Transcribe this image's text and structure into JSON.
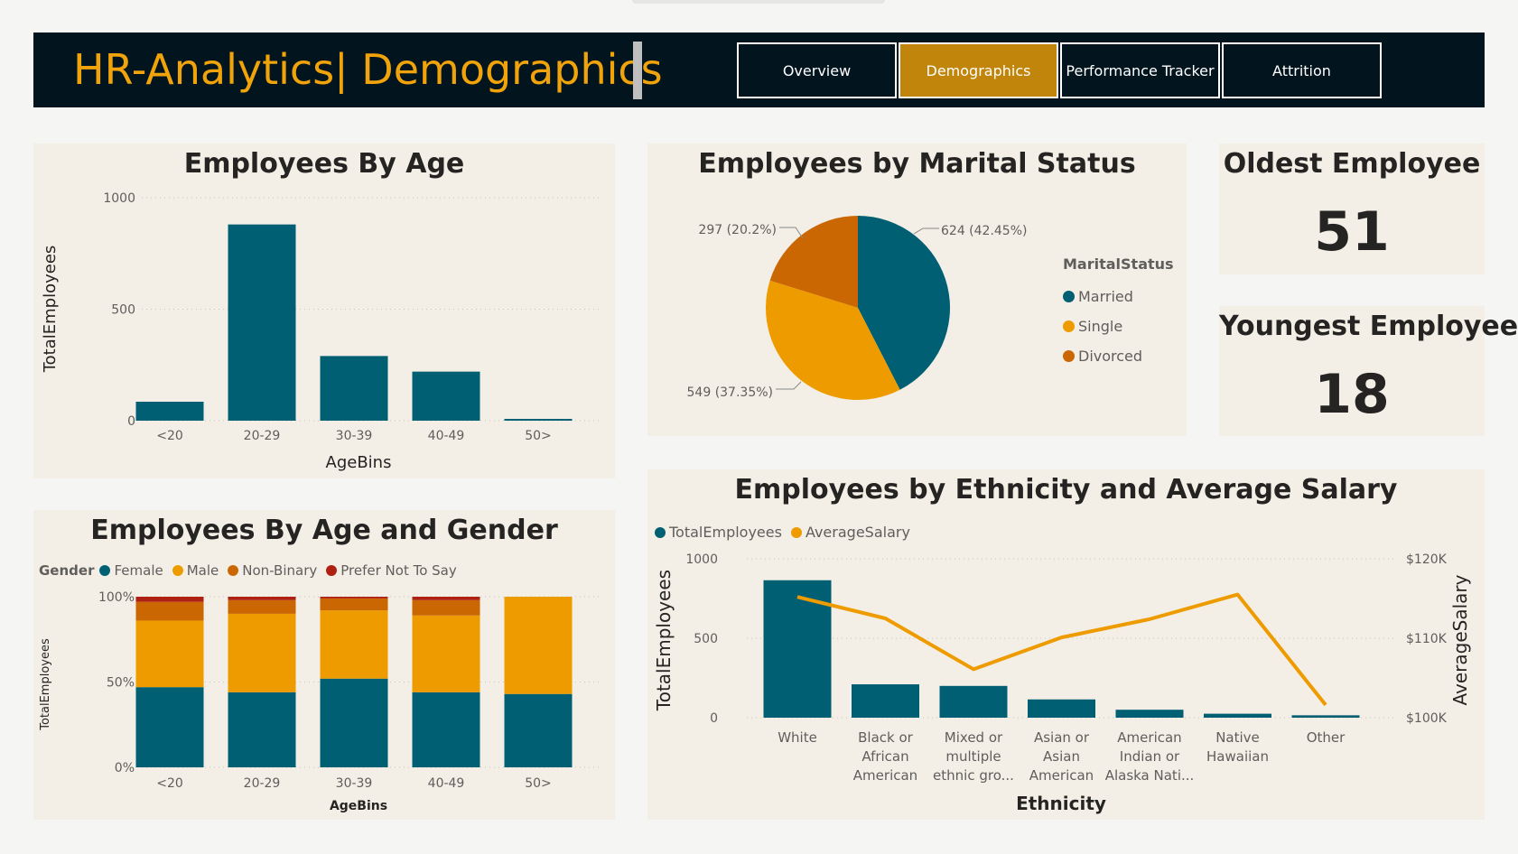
{
  "header": {
    "title": "HR-Analytics| Demographics",
    "nav": [
      {
        "label": "Overview",
        "active": false
      },
      {
        "label": "Demographics",
        "active": true
      },
      {
        "label": "Performance Tracker",
        "active": false
      },
      {
        "label": "Attrition",
        "active": false
      }
    ]
  },
  "colors": {
    "teal": "#005f73",
    "amber": "#ee9b00",
    "orange": "#ca6702",
    "red": "#ae2012",
    "header_bg": "#02141d",
    "title_color": "#f0a30a",
    "active_nav": "#c0850a",
    "panel_bg": "#f3efe6"
  },
  "age_panel": {
    "title": "Employees By Age",
    "chart_data": {
      "type": "bar",
      "categories": [
        "<20",
        "20-29",
        "30-39",
        "40-49",
        "50>"
      ],
      "values": [
        85,
        880,
        290,
        220,
        8
      ],
      "ylim": [
        0,
        1000
      ],
      "yticks": [
        "0",
        "500",
        "1000"
      ],
      "xlabel": "AgeBins",
      "ylabel": "TotalEmployees",
      "grid": true
    }
  },
  "marital_panel": {
    "title": "Employees by Marital Status",
    "legend_title": "MaritalStatus",
    "chart_data": {
      "type": "pie",
      "categories": [
        "Married",
        "Single",
        "Divorced"
      ],
      "values": [
        624,
        549,
        297
      ],
      "labels": [
        "624 (42.45%)",
        "549 (37.35%)",
        "297 (20.2%)"
      ]
    }
  },
  "oldest": {
    "title": "Oldest Employee",
    "value": "51"
  },
  "youngest": {
    "title": "Youngest Employee",
    "value": "18"
  },
  "age_gender_panel": {
    "title": "Employees By Age and Gender",
    "legend_title": "Gender",
    "chart_data": {
      "type": "bar",
      "stacked": "100%",
      "categories": [
        "<20",
        "20-29",
        "30-39",
        "40-49",
        "50>"
      ],
      "series": [
        {
          "name": "Female",
          "values": [
            47,
            44,
            52,
            44,
            43
          ]
        },
        {
          "name": "Male",
          "values": [
            39,
            46,
            40,
            45,
            57
          ]
        },
        {
          "name": "Non-Binary",
          "values": [
            11,
            8,
            7,
            9,
            0
          ]
        },
        {
          "name": "Prefer Not To Say",
          "values": [
            3,
            2,
            1,
            2,
            0
          ]
        }
      ],
      "yticks": [
        "0%",
        "50%",
        "100%"
      ],
      "xlabel": "AgeBins",
      "ylabel": "TotalEmployees",
      "grid": true
    }
  },
  "ethnicity_panel": {
    "title": "Employees by Ethnicity and Average Salary",
    "chart_data": {
      "type": "bar",
      "categories": [
        [
          "White"
        ],
        [
          "Black or",
          "African",
          "American"
        ],
        [
          "Mixed or",
          "multiple",
          "ethnic gro..."
        ],
        [
          "Asian or",
          "Asian",
          "American"
        ],
        [
          "American",
          "Indian or",
          "Alaska Nati..."
        ],
        [
          "Native",
          "Hawaiian"
        ],
        [
          "Other"
        ]
      ],
      "series": [
        {
          "name": "TotalEmployees",
          "type": "bar",
          "axis": "left",
          "values": [
            865,
            210,
            200,
            115,
            50,
            25,
            15
          ]
        },
        {
          "name": "AverageSalary",
          "type": "line",
          "axis": "right",
          "values": [
            115200,
            112500,
            106100,
            110100,
            112400,
            115500,
            101600
          ]
        }
      ],
      "ylim_left": [
        0,
        1000
      ],
      "yticks_left": [
        "0",
        "500",
        "1000"
      ],
      "ylim_right": [
        100000,
        120000
      ],
      "yticks_right": [
        "$100K",
        "$110K",
        "$120K"
      ],
      "xlabel": "Ethnicity",
      "ylabel_left": "TotalEmployees",
      "ylabel_right": "AverageSalary",
      "grid": true
    }
  }
}
